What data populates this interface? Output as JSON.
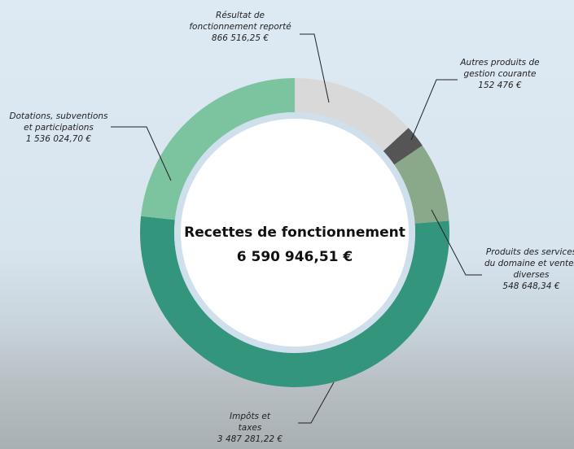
{
  "chart_data": {
    "type": "donut",
    "center_title": "Recettes de fonctionnement",
    "total": {
      "value": 6590946.51,
      "label": "6 590 946,51 €"
    },
    "categories": [
      "Résultat de fonctionnement reporté",
      "Autres produits de gestion courante",
      "Produits des services du domaine et ventes diverses",
      "Impôts et taxes",
      "Dotations, subventions et participations"
    ],
    "values": [
      866516.25,
      152476,
      548648.34,
      3487281.22,
      1536024.7
    ],
    "value_labels": [
      "866 516,25 €",
      "152 476 €",
      "548 648,34 €",
      "3 487 281,22 €",
      "1 536 024,70 €"
    ],
    "colors": [
      "#d9d9d9",
      "#555555",
      "#8aa98a",
      "#33967c",
      "#7cc4a0"
    ]
  }
}
